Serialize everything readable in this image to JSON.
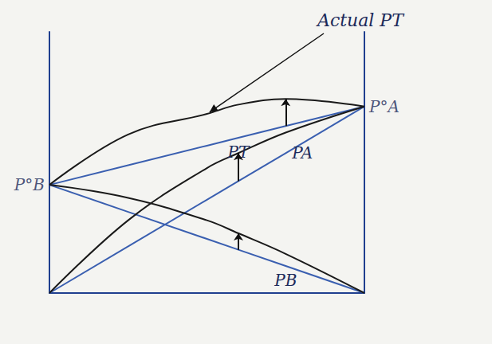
{
  "chart_data": {
    "type": "line",
    "x": [
      0,
      0.25,
      0.5,
      0.6,
      0.75,
      1
    ],
    "xlim": [
      0,
      1
    ],
    "ylim": [
      0,
      140
    ],
    "tick_labels": false,
    "grid": false,
    "series": [
      {
        "name": "PT",
        "color": "#3a5fb0",
        "values": [
          58,
          68.5,
          79,
          83.2,
          89.5,
          100
        ]
      },
      {
        "name": "PA",
        "color": "#3a5fb0",
        "values": [
          0,
          25,
          50,
          60,
          75,
          100
        ]
      },
      {
        "name": "PB",
        "color": "#3a5fb0",
        "values": [
          58,
          43.5,
          29,
          23.2,
          14.5,
          0
        ]
      },
      {
        "color": "#1a1a1a",
        "values": [
          58,
          85,
          96,
          101,
          104,
          100
        ]
      },
      {
        "color": "#1a1a1a",
        "values": [
          0,
          39,
          67,
          75,
          86,
          100
        ]
      },
      {
        "color": "#1a1a1a",
        "values": [
          58,
          51,
          39,
          32,
          21,
          0
        ]
      }
    ],
    "annotations": [
      {
        "text": "P°B",
        "x": 0,
        "y": 58
      },
      {
        "text": "P°A",
        "x": 1,
        "y": 100
      },
      {
        "text": "Actual PT",
        "x": 0.5,
        "y": 96
      }
    ]
  }
}
